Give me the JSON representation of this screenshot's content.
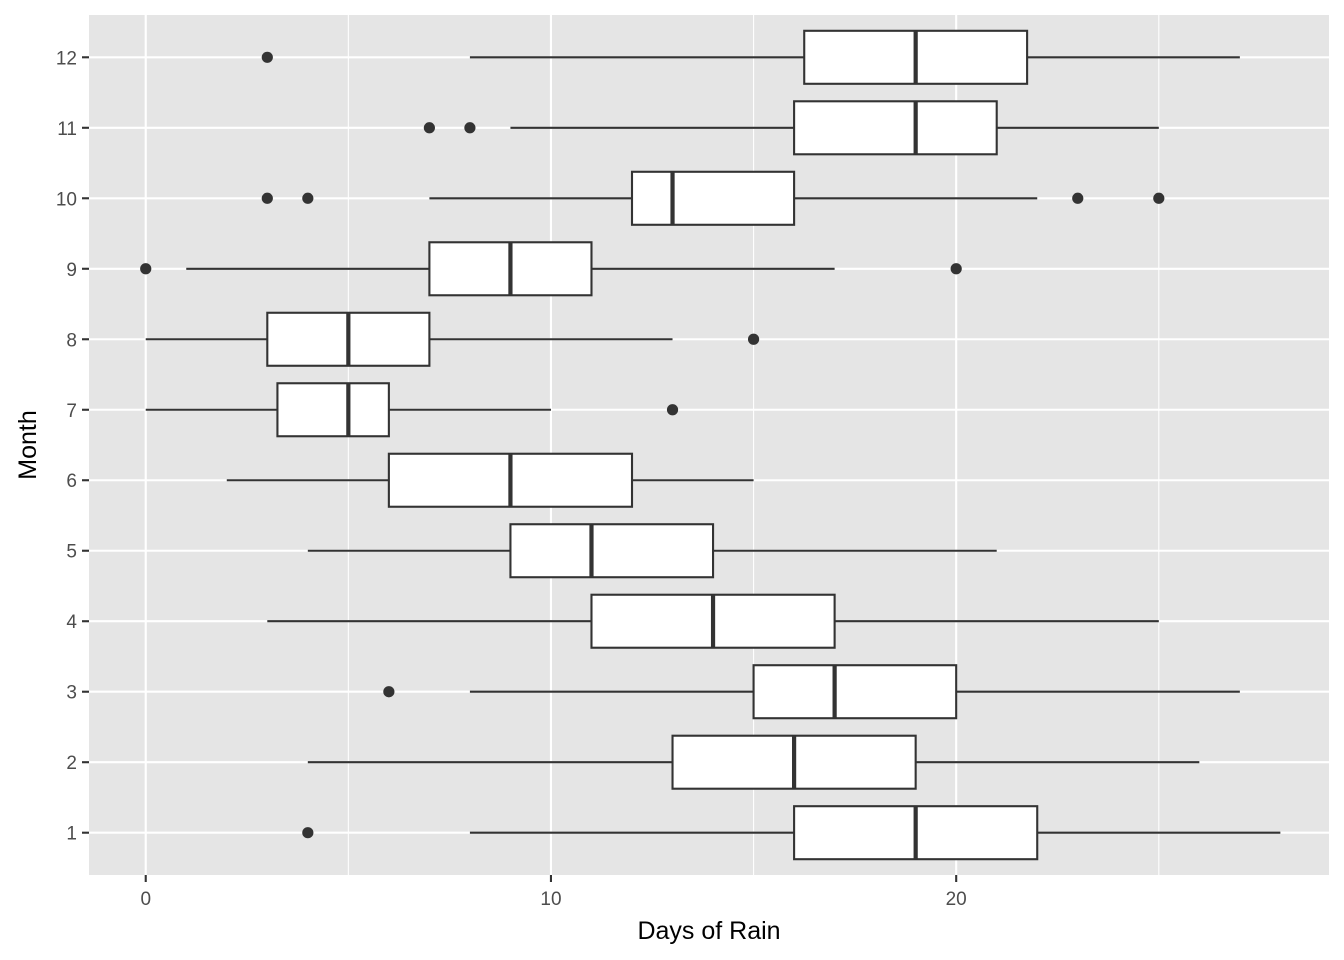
{
  "chart_data": {
    "type": "boxplot",
    "orientation": "horizontal",
    "xlabel": "Days of Rain",
    "ylabel": "Month",
    "xlim": [
      -1.4,
      29.2
    ],
    "x_ticks": [
      0,
      10,
      20
    ],
    "x_minor_ticks": [
      5,
      15,
      25
    ],
    "grid": true,
    "colors": {
      "panel": "#e5e5e5",
      "grid": "#ffffff",
      "box_fill": "#ffffff",
      "stroke": "#333333",
      "tick_text": "#4d4d4d"
    },
    "categories": [
      "1",
      "2",
      "3",
      "4",
      "5",
      "6",
      "7",
      "8",
      "9",
      "10",
      "11",
      "12"
    ],
    "boxes": [
      {
        "month": "1",
        "whisker_low": 8,
        "q1": 16,
        "median": 19,
        "q3": 22,
        "whisker_high": 28,
        "outliers": [
          4
        ]
      },
      {
        "month": "2",
        "whisker_low": 4,
        "q1": 13,
        "median": 16,
        "q3": 19,
        "whisker_high": 26,
        "outliers": []
      },
      {
        "month": "3",
        "whisker_low": 8,
        "q1": 15,
        "median": 17,
        "q3": 20,
        "whisker_high": 27,
        "outliers": [
          6
        ]
      },
      {
        "month": "4",
        "whisker_low": 3,
        "q1": 11,
        "median": 14,
        "q3": 17,
        "whisker_high": 25,
        "outliers": []
      },
      {
        "month": "5",
        "whisker_low": 4,
        "q1": 9,
        "median": 11,
        "q3": 14,
        "whisker_high": 21,
        "outliers": []
      },
      {
        "month": "6",
        "whisker_low": 2,
        "q1": 6,
        "median": 9,
        "q3": 12,
        "whisker_high": 15,
        "outliers": []
      },
      {
        "month": "7",
        "whisker_low": 0,
        "q1": 3.25,
        "median": 5,
        "q3": 6,
        "whisker_high": 10,
        "outliers": [
          13
        ]
      },
      {
        "month": "8",
        "whisker_low": 0,
        "q1": 3,
        "median": 5,
        "q3": 7,
        "whisker_high": 13,
        "outliers": [
          15
        ]
      },
      {
        "month": "9",
        "whisker_low": 1,
        "q1": 7,
        "median": 9,
        "q3": 11,
        "whisker_high": 17,
        "outliers": [
          0,
          20
        ]
      },
      {
        "month": "10",
        "whisker_low": 7,
        "q1": 12,
        "median": 13,
        "q3": 16,
        "whisker_high": 22,
        "outliers": [
          3,
          4,
          23,
          25
        ]
      },
      {
        "month": "11",
        "whisker_low": 9,
        "q1": 16,
        "median": 19,
        "q3": 21,
        "whisker_high": 25,
        "outliers": [
          7,
          8
        ]
      },
      {
        "month": "12",
        "whisker_low": 8,
        "q1": 16.25,
        "median": 19,
        "q3": 21.75,
        "whisker_high": 27,
        "outliers": [
          3
        ]
      }
    ]
  }
}
